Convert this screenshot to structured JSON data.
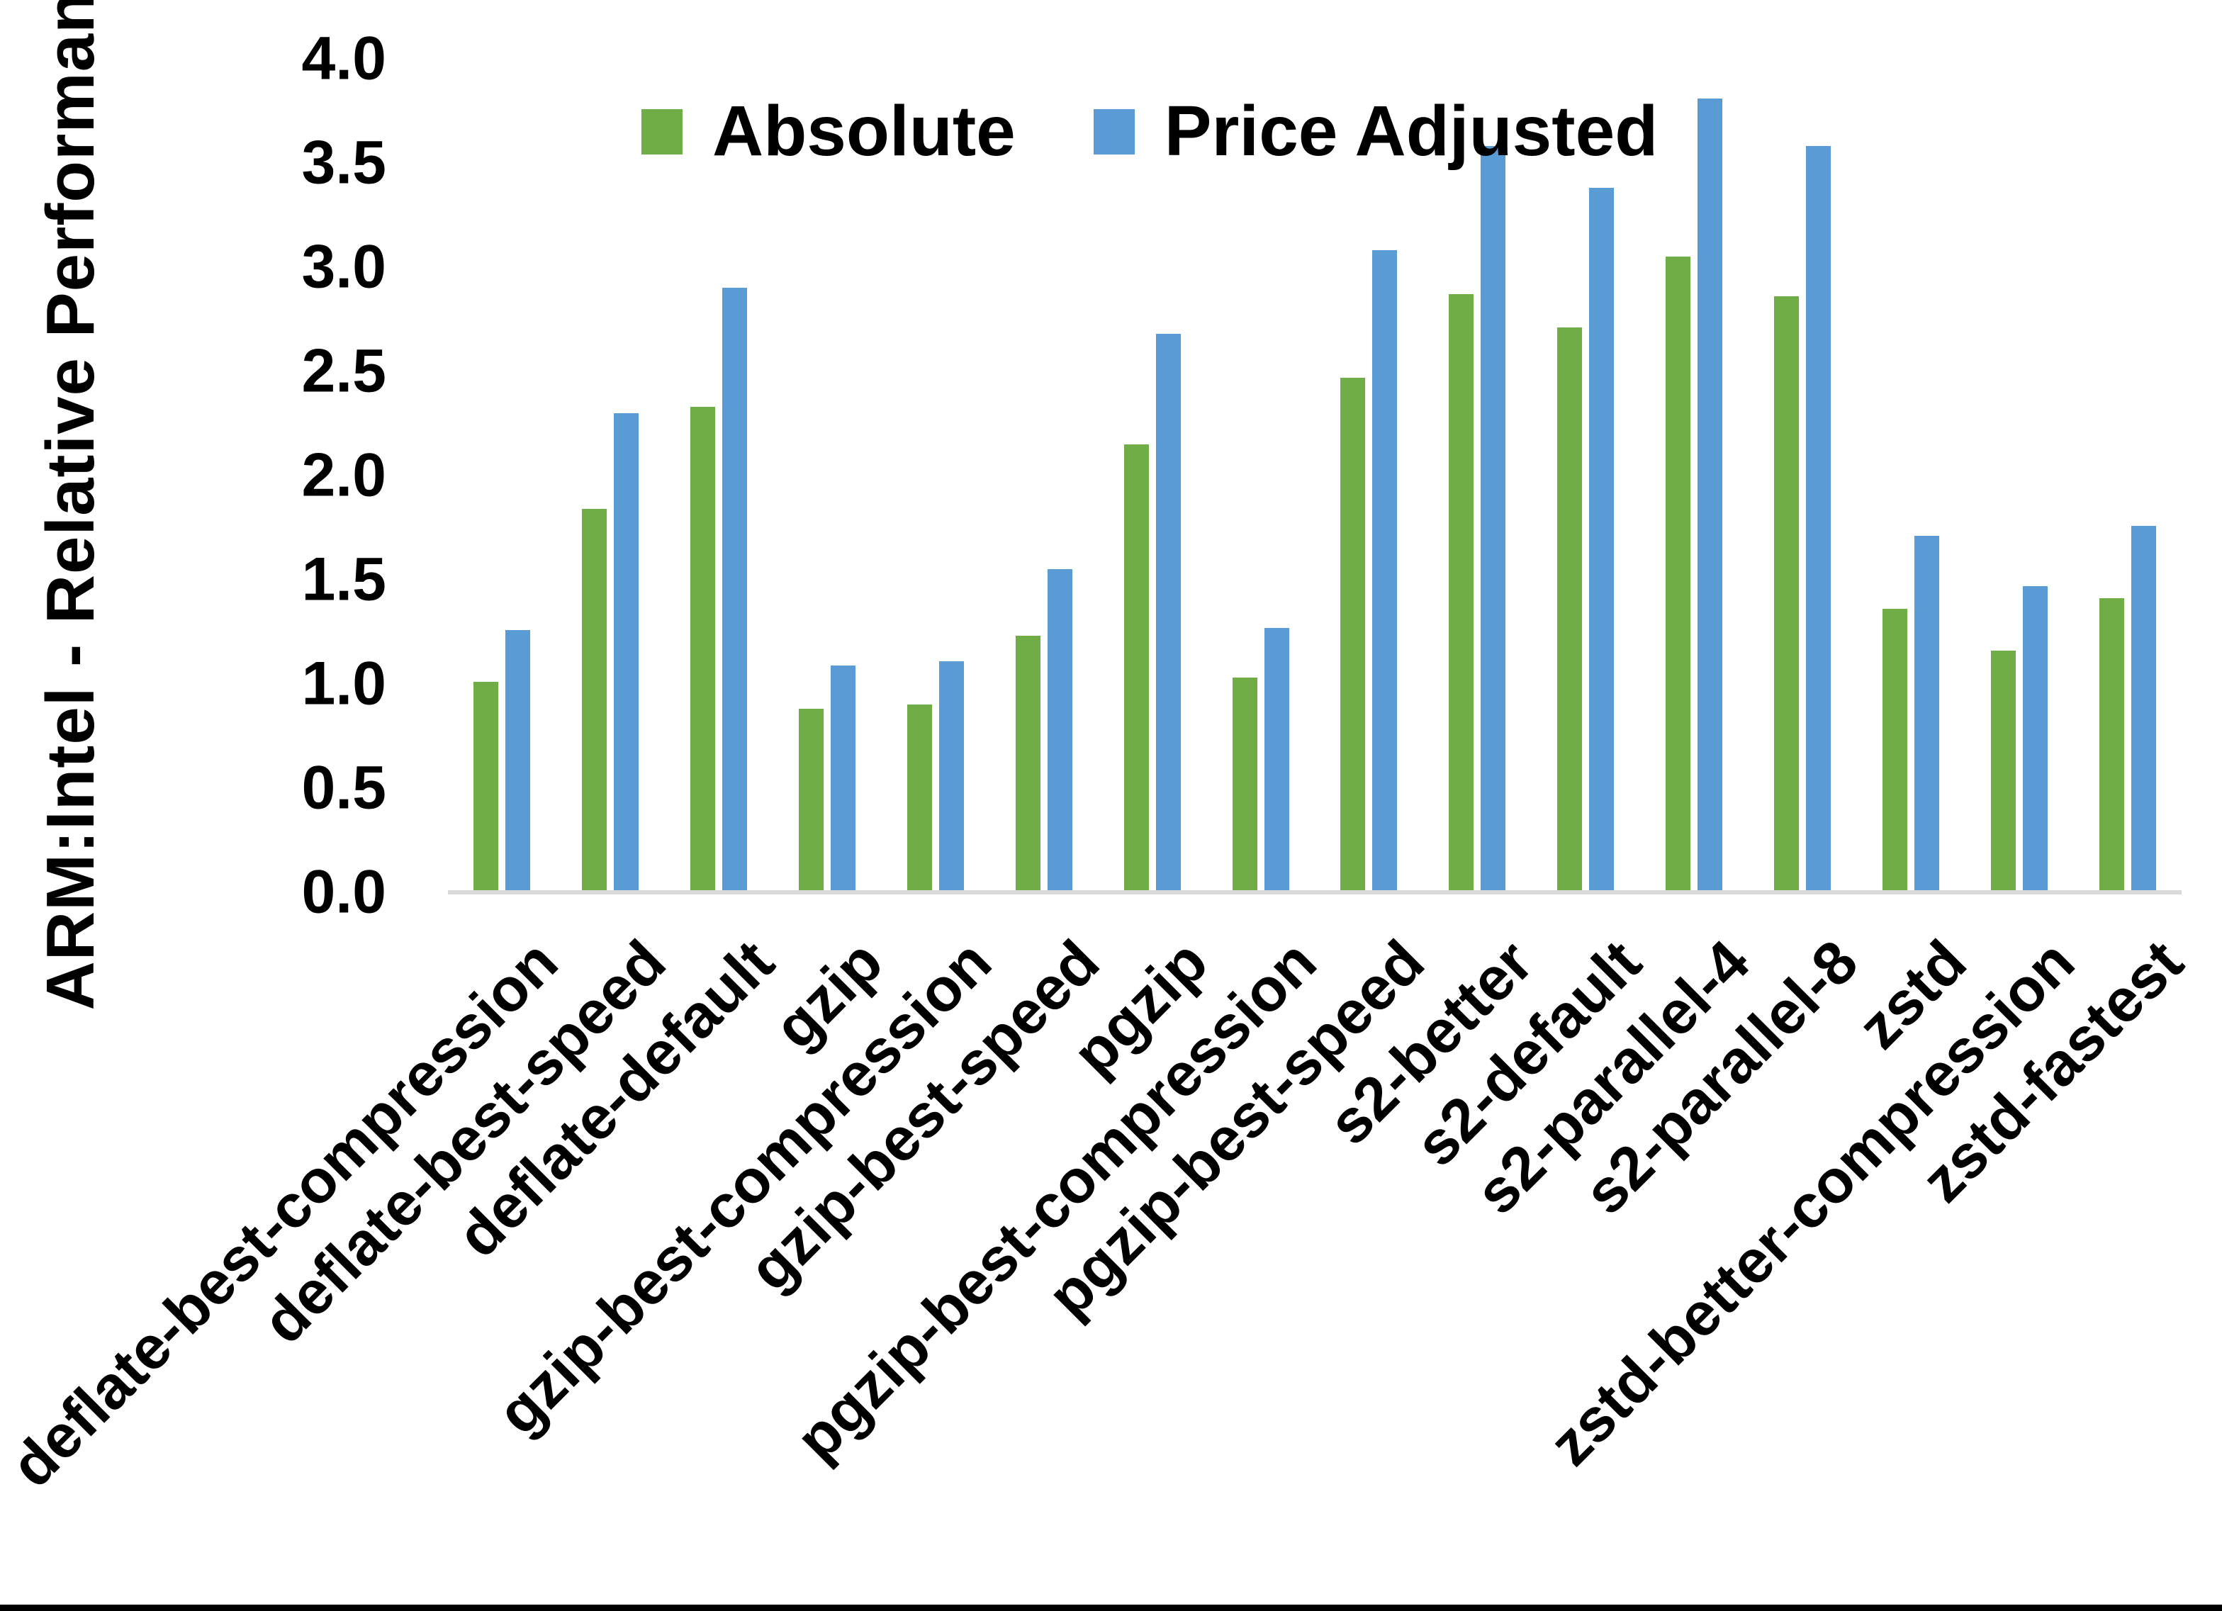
{
  "figure": {
    "background": "#ffffff",
    "bottom_border_color": "#000000",
    "axis_line_color": "#d9d9d9",
    "text_color": "#000000"
  },
  "chart_data": {
    "type": "bar",
    "title": "",
    "xlabel": "",
    "ylabel": "ARM:Intel - Relative Performance",
    "ylim": [
      0.0,
      4.0
    ],
    "ytick_step": 0.5,
    "ytick_labels": [
      "0.0",
      "0.5",
      "1.0",
      "1.5",
      "2.0",
      "2.5",
      "3.0",
      "3.5",
      "4.0"
    ],
    "grid": false,
    "legend_position": "top-center",
    "categories": [
      "deflate-best-compression",
      "deflate-best-speed",
      "deflate-default",
      "gzip",
      "gzip-best-compression",
      "gzip-best-speed",
      "pgzip",
      "pgzip-best-compression",
      "pgzip-best-speed",
      "s2-better",
      "s2-default",
      "s2-parallel-4",
      "s2-parallel-8",
      "zstd",
      "zstd-better-compression",
      "zstd-fastest"
    ],
    "series": [
      {
        "name": "Absolute",
        "color": "#70AD47",
        "values": [
          1.01,
          1.84,
          2.33,
          0.88,
          0.9,
          1.23,
          2.15,
          1.03,
          2.47,
          2.87,
          2.71,
          3.05,
          2.86,
          1.36,
          1.16,
          1.41
        ]
      },
      {
        "name": "Price Adjusted",
        "color": "#5B9BD5",
        "values": [
          1.26,
          2.3,
          2.9,
          1.09,
          1.11,
          1.55,
          2.68,
          1.27,
          3.08,
          3.58,
          3.38,
          3.81,
          3.58,
          1.71,
          1.47,
          1.76
        ]
      }
    ]
  }
}
